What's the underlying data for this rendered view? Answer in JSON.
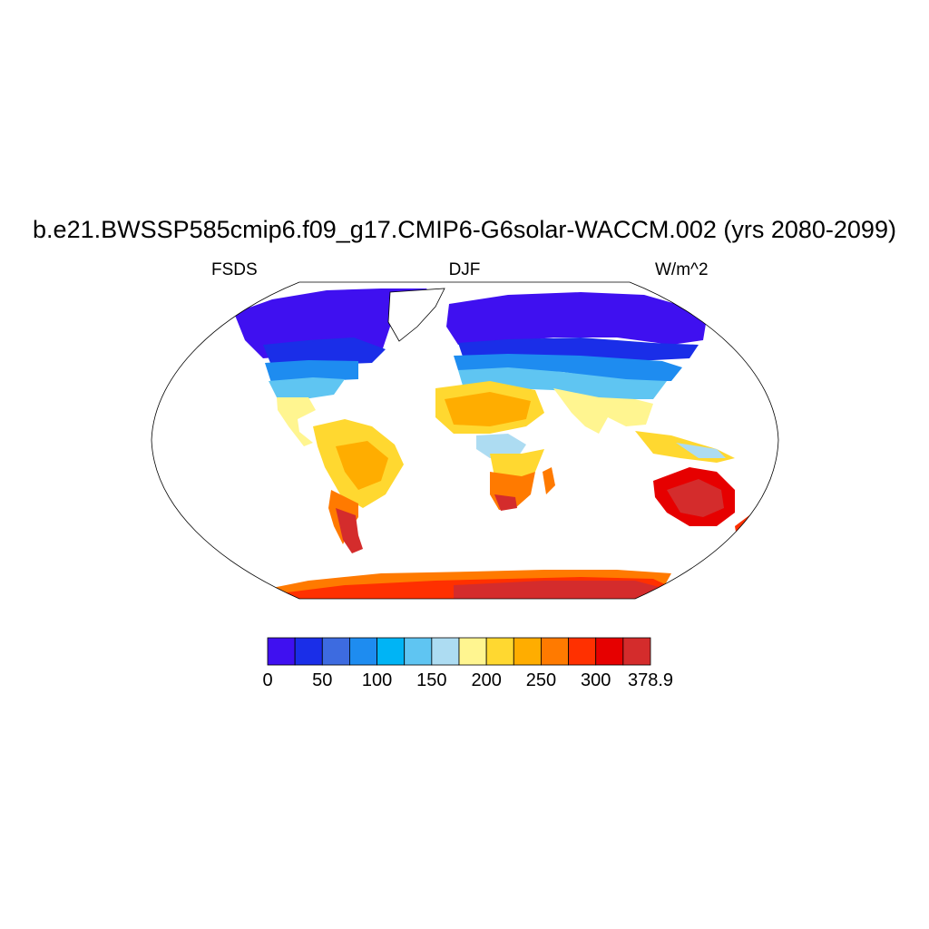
{
  "title": "b.e21.BWSSP585cmip6.f09_g17.CMIP6-G6solar-WACCM.002 (yrs 2080-2099)",
  "left_label": "FSDS",
  "center_label": "DJF",
  "right_label": "W/m^2",
  "colorbar": {
    "levels": [
      0,
      25,
      50,
      75,
      100,
      125,
      150,
      175,
      200,
      225,
      250,
      275,
      300,
      325,
      378.9
    ],
    "colors": [
      "#3f10f0",
      "#1a2ee8",
      "#3d6be0",
      "#1e8cf0",
      "#00b4f5",
      "#5fc5f2",
      "#addcf2",
      "#fff590",
      "#ffd830",
      "#ffad00",
      "#ff7a00",
      "#ff3000",
      "#e60000",
      "#d42c2c"
    ],
    "tick_labels": [
      "0",
      "50",
      "100",
      "150",
      "200",
      "250",
      "300",
      "378.9"
    ]
  },
  "map": {
    "projection": "robinson",
    "background": "#ffffff",
    "boundary_color": "#000000"
  }
}
